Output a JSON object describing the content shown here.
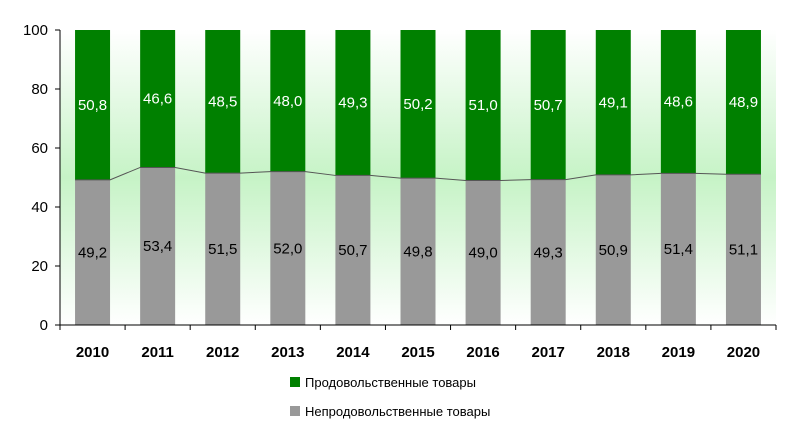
{
  "chart_data": {
    "type": "bar",
    "stacked": true,
    "categories": [
      "2010",
      "2011",
      "2012",
      "2013",
      "2014",
      "2015",
      "2016",
      "2017",
      "2018",
      "2019",
      "2020"
    ],
    "series": [
      {
        "name": "Непродовольственные товары",
        "color": "#999999",
        "values": [
          49.2,
          53.4,
          51.5,
          52.0,
          50.7,
          49.8,
          49.0,
          49.3,
          50.9,
          51.4,
          51.1
        ],
        "labels": [
          "49,2",
          "53,4",
          "51,5",
          "52,0",
          "50,7",
          "49,8",
          "49,0",
          "49,3",
          "50,9",
          "51,4",
          "51,1"
        ]
      },
      {
        "name": "Продовольственные товары",
        "color": "#008000",
        "values": [
          50.8,
          46.6,
          48.5,
          48.0,
          49.3,
          50.2,
          51.0,
          50.7,
          49.1,
          48.6,
          48.9
        ],
        "labels": [
          "50,8",
          "46,6",
          "48,5",
          "48,0",
          "49,3",
          "50,2",
          "51,0",
          "50,7",
          "49,1",
          "48,6",
          "48,9"
        ]
      }
    ],
    "y_ticks": [
      "0",
      "20",
      "40",
      "60",
      "80",
      "100"
    ],
    "ylim": [
      0,
      100
    ],
    "legend": [
      {
        "label": "Продовольственные товары",
        "color": "#008000"
      },
      {
        "label": "Непродовольственные товары",
        "color": "#999999"
      }
    ],
    "legend_position": "bottom",
    "grid": false
  }
}
